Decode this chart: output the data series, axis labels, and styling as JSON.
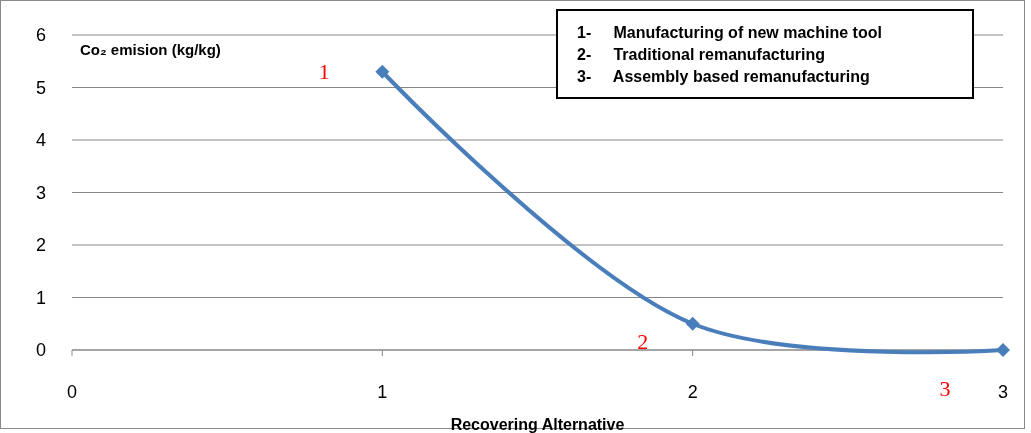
{
  "chart_data": {
    "type": "line",
    "xlabel": "Recovering Alternative",
    "ylabel": "Co₂ emision (kg/kg)",
    "x": [
      1,
      2,
      3
    ],
    "series": [
      {
        "color": "#4a7ebb",
        "values": [
          5.3,
          0.5,
          0
        ]
      }
    ],
    "xlim": [
      0,
      3
    ],
    "xticks": [
      0,
      1,
      2,
      3
    ],
    "ylim": [
      0,
      6
    ],
    "yticks": [
      0,
      1,
      2,
      3,
      4,
      5,
      6
    ],
    "grid": "y",
    "marker": "diamond",
    "line_style": "solid",
    "annotations": [
      {
        "text": "1",
        "x": 1,
        "y": 5.3
      },
      {
        "text": "2",
        "x": 2,
        "y": 0.5
      },
      {
        "text": "3",
        "x": 3,
        "y": 0
      },
      "1-     Manufacturing of new machine tool",
      "2-     Traditional remanufacturing",
      "3-     Assembly based remanufacturing"
    ]
  }
}
